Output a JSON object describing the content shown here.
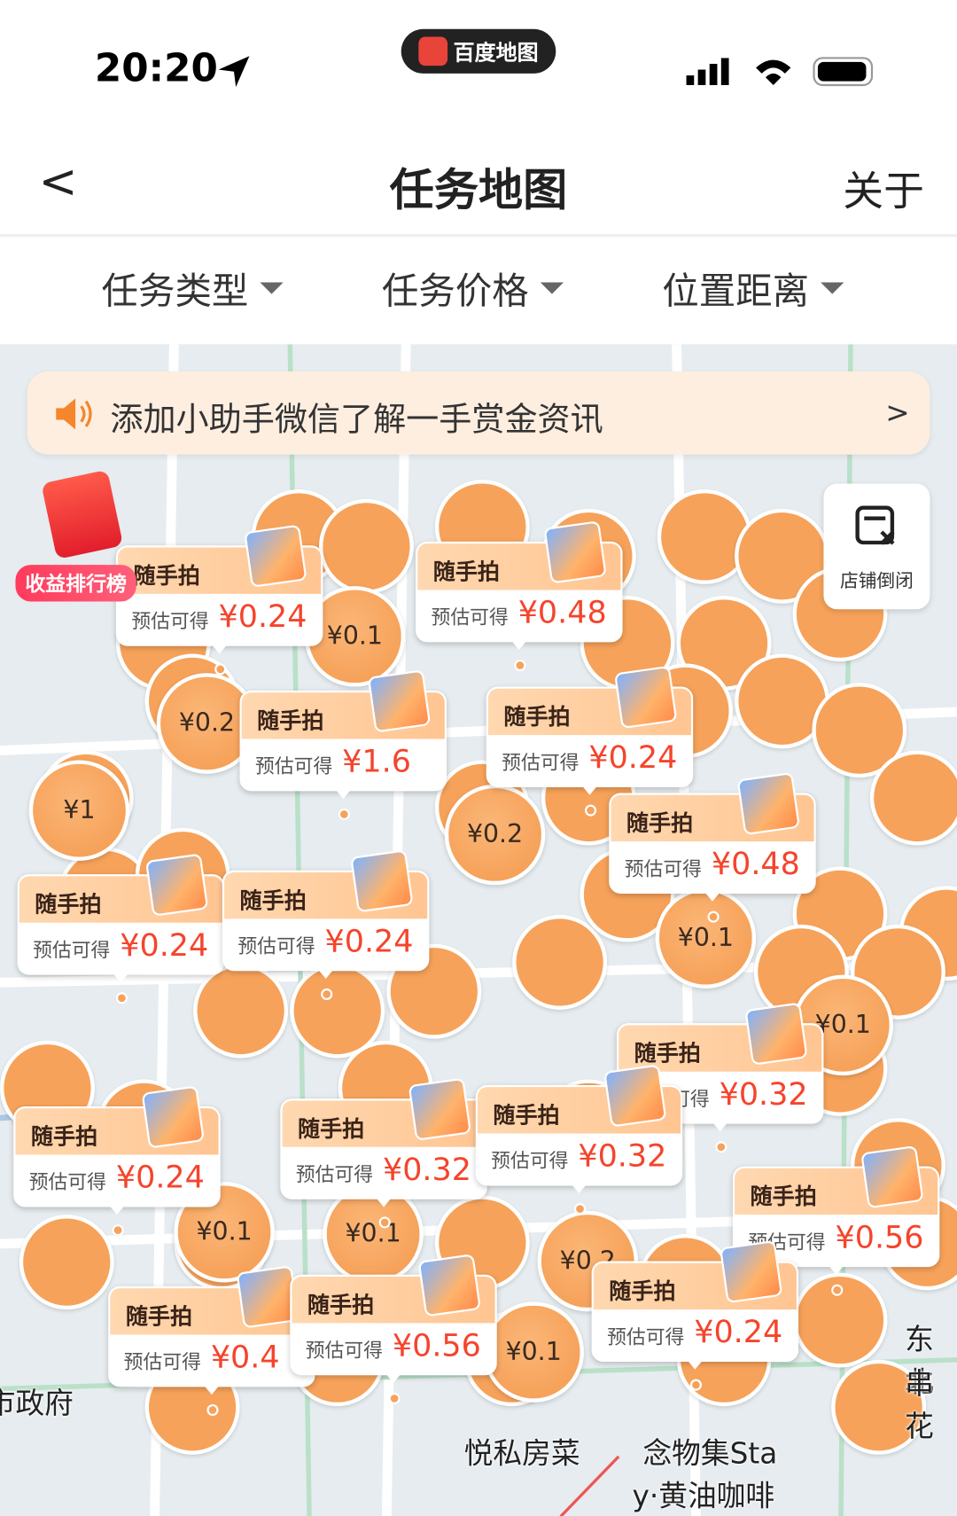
{
  "status_bar": {
    "time": "20:20",
    "app_badge": "百度地图"
  },
  "header": {
    "back": "<",
    "title": "任务地图",
    "about": "关于"
  },
  "filters": [
    "任务类型",
    "任务价格",
    "位置距离"
  ],
  "banner": {
    "text": "添加小助手微信了解一手赏金资讯",
    "arrow": ">"
  },
  "ranking_label": "收益排行榜",
  "shop_button": "店铺倒闭",
  "bubbles": [
    "¥0.2",
    "¥1",
    "¥0.1",
    "¥0.2",
    "¥0.1",
    "¥0.1",
    "¥0.1",
    "¥0.1",
    "¥0.2",
    "¥0.1"
  ],
  "cards": [
    {
      "title": "随手拍",
      "label": "预估可得",
      "price": "¥0.24"
    },
    {
      "title": "随手拍",
      "label": "预估可得",
      "price": "¥0.48"
    },
    {
      "title": "随手拍",
      "label": "预估可得",
      "price": "¥1.6"
    },
    {
      "title": "随手拍",
      "label": "预估可得",
      "price": "¥0.24"
    },
    {
      "title": "随手拍",
      "label": "预估可得",
      "price": "¥0.48"
    },
    {
      "title": "随手拍",
      "label": "预估可得",
      "price": "¥0.24"
    },
    {
      "title": "随手拍",
      "label": "预估可得",
      "price": "¥0.24"
    },
    {
      "title": "随手拍",
      "label": "预估可得",
      "price": "¥0.32"
    },
    {
      "title": "随手拍",
      "label": "预估可得",
      "price": "¥0.24"
    },
    {
      "title": "随手拍",
      "label": "预估可得",
      "price": "¥0.32"
    },
    {
      "title": "随手拍",
      "label": "预估可得",
      "price": "¥0.32"
    },
    {
      "title": "随手拍",
      "label": "预估可得",
      "price": "¥0.56"
    },
    {
      "title": "随手拍",
      "label": "预估可得",
      "price": "¥0.4"
    },
    {
      "title": "随手拍",
      "label": "预估可得",
      "price": "¥0.56"
    },
    {
      "title": "随手拍",
      "label": "预估可得",
      "price": "¥0.24"
    }
  ],
  "map_labels": [
    "悦私房菜",
    "念物集Sta",
    "y·黄油咖啡",
    "东北",
    "串花",
    "市政府"
  ]
}
